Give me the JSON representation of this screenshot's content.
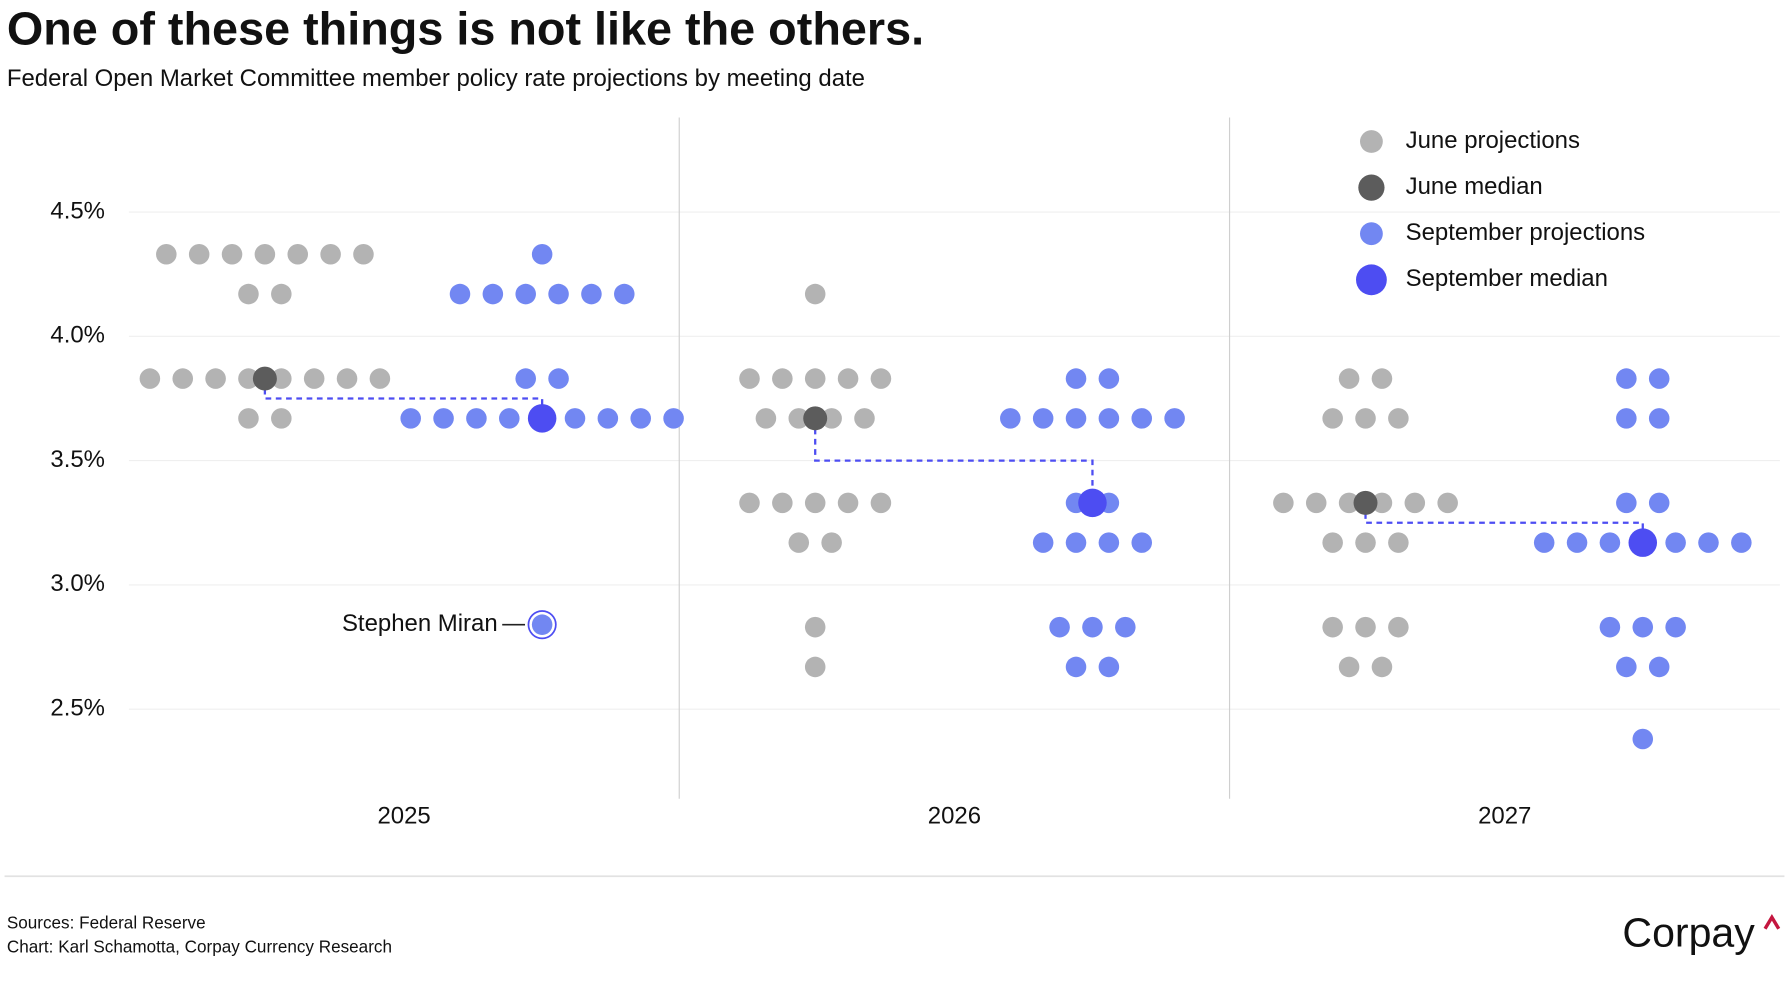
{
  "chart_data": {
    "type": "dot",
    "title": "One of these things is not like the others.",
    "subtitle": "Federal Open Market Committee member policy rate projections by meeting date",
    "categories": [
      "2025",
      "2026",
      "2027"
    ],
    "ylim": [
      2.14,
      4.88
    ],
    "yticks": [
      {
        "value": 2.5,
        "label": "2.5%"
      },
      {
        "value": 3.0,
        "label": "3.0%"
      },
      {
        "value": 3.5,
        "label": "3.5%"
      },
      {
        "value": 4.0,
        "label": "4.0%"
      },
      {
        "value": 4.5,
        "label": "4.5%"
      }
    ],
    "grid": true,
    "legend": "top-right",
    "series": [
      {
        "name": "June projections",
        "color": "#b3b3b3",
        "values": [
          [
            4.33,
            4.33,
            4.33,
            4.33,
            4.33,
            4.33,
            4.33,
            4.17,
            4.17,
            3.83,
            3.83,
            3.83,
            3.83,
            3.83,
            3.83,
            3.83,
            3.83,
            3.67,
            3.67
          ],
          [
            4.17,
            3.83,
            3.83,
            3.83,
            3.83,
            3.83,
            3.67,
            3.67,
            3.67,
            3.67,
            3.33,
            3.33,
            3.33,
            3.33,
            3.33,
            3.17,
            3.17,
            2.83,
            2.67
          ],
          [
            3.83,
            3.83,
            3.67,
            3.67,
            3.67,
            3.33,
            3.33,
            3.33,
            3.33,
            3.33,
            3.33,
            3.17,
            3.17,
            3.17,
            2.83,
            2.83,
            2.83,
            2.67,
            2.67
          ]
        ]
      },
      {
        "name": "June median",
        "color": "#5c5c5c",
        "values": [
          3.83,
          3.67,
          3.33
        ]
      },
      {
        "name": "September projections",
        "color": "#7287f2",
        "values": [
          [
            4.33,
            4.17,
            4.17,
            4.17,
            4.17,
            4.17,
            4.17,
            3.83,
            3.83,
            3.67,
            3.67,
            3.67,
            3.67,
            3.67,
            3.67,
            3.67,
            3.67,
            3.67,
            2.84
          ],
          [
            3.83,
            3.83,
            3.67,
            3.67,
            3.67,
            3.67,
            3.67,
            3.67,
            3.33,
            3.33,
            3.17,
            3.17,
            3.17,
            3.17,
            2.83,
            2.83,
            2.83,
            2.67,
            2.67
          ],
          [
            3.83,
            3.83,
            3.67,
            3.67,
            3.33,
            3.33,
            3.17,
            3.17,
            3.17,
            3.17,
            3.17,
            3.17,
            3.17,
            2.83,
            2.83,
            2.83,
            2.67,
            2.67,
            2.38
          ]
        ]
      },
      {
        "name": "September median",
        "color": "#4d4df2",
        "values": [
          3.67,
          3.33,
          3.17
        ]
      }
    ],
    "annotation": {
      "text": "Stephen Miran",
      "series": "September projections",
      "category": "2025"
    },
    "sources": "Sources: Federal Reserve",
    "credit": "Chart: Karl Schamotta, Corpay Currency Research",
    "logo": "Corpay"
  }
}
